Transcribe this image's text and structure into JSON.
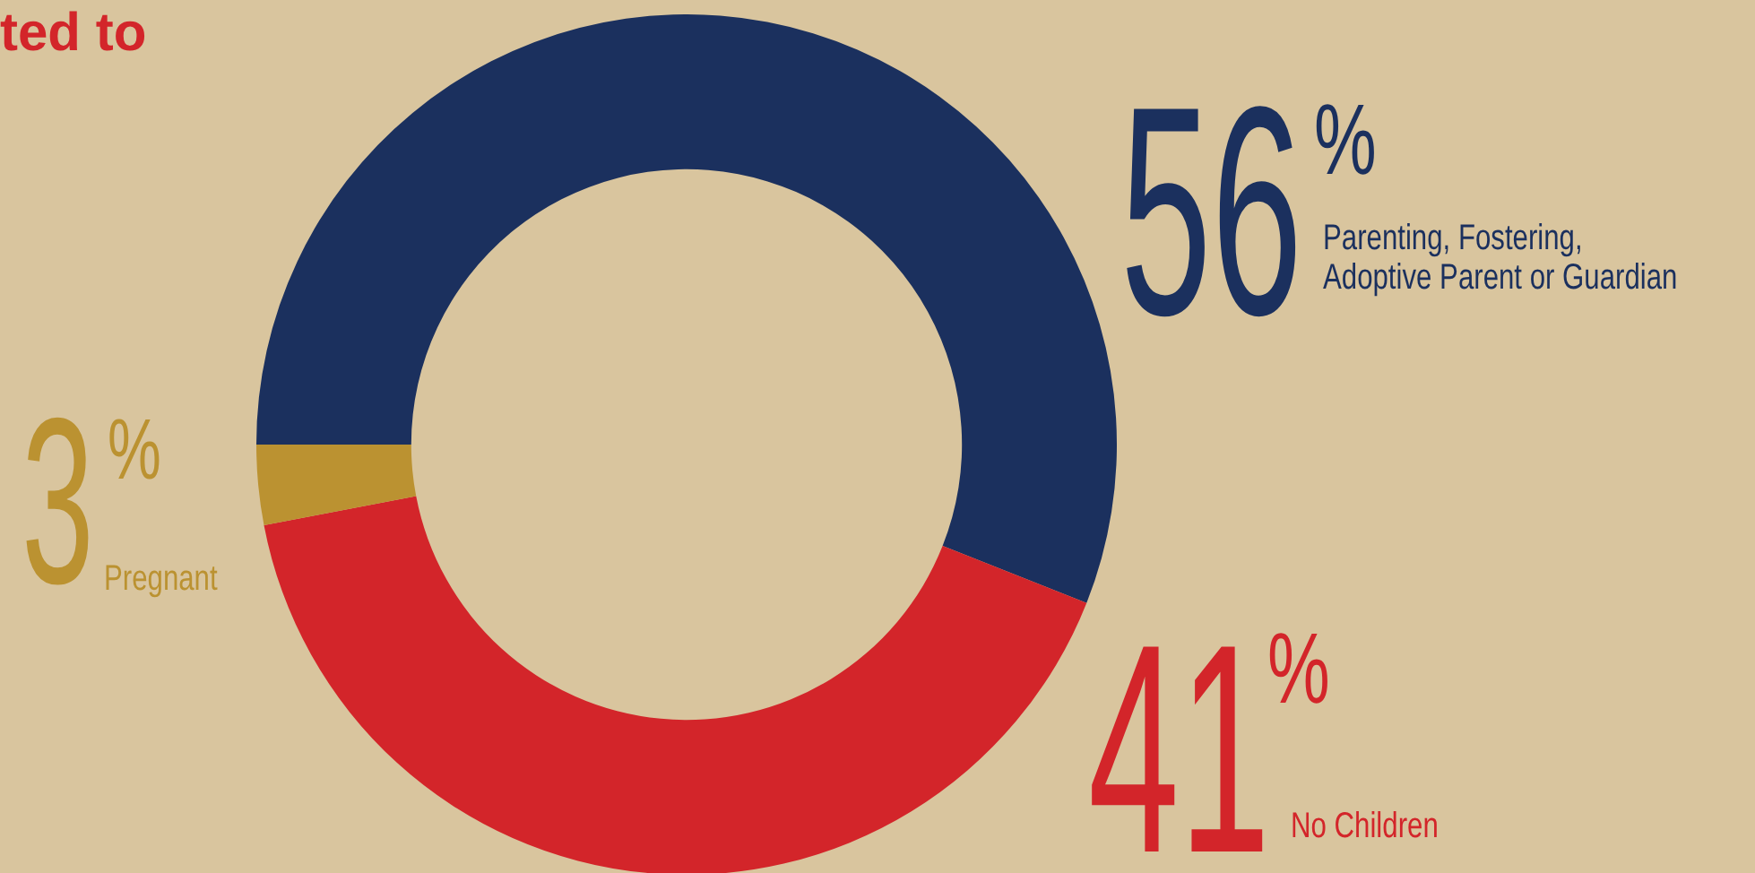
{
  "chart_data": {
    "type": "donut",
    "categories": [
      "Parenting, Fostering, Adoptive Parent or Guardian",
      "No Children",
      "Pregnant"
    ],
    "values": [
      56,
      41,
      3
    ],
    "colors": [
      "#1b305e",
      "#d3252a",
      "#bb9231"
    ],
    "value_labels": [
      "56%",
      "41%",
      "3%"
    ],
    "legend": false,
    "annotations": [
      "ted to"
    ]
  }
}
